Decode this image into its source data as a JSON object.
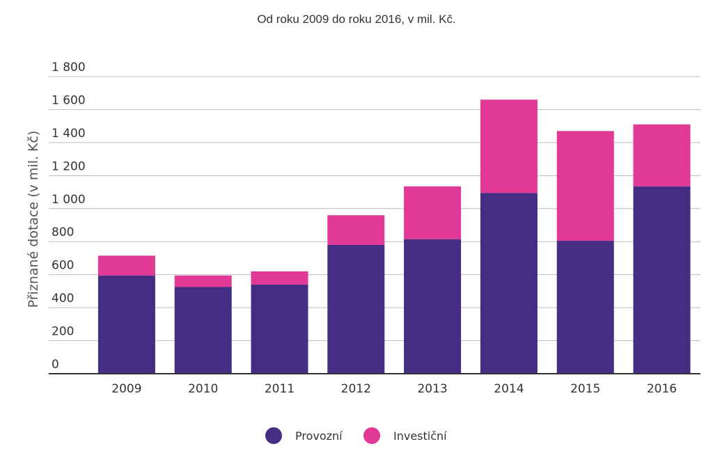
{
  "chart_data": {
    "type": "bar",
    "stacked": true,
    "title": "Od roku 2009 do roku 2016, v mil. Kč.",
    "xlabel": "",
    "ylabel": "Přiznané dotace (v mil. Kč)",
    "categories": [
      "2009",
      "2010",
      "2011",
      "2012",
      "2013",
      "2014",
      "2015",
      "2016"
    ],
    "series": [
      {
        "name": "Provozní",
        "color": "#452d83",
        "values": [
          595,
          525,
          540,
          780,
          815,
          1095,
          805,
          1135
        ]
      },
      {
        "name": "Investiční",
        "color": "#e03a96",
        "values": [
          120,
          70,
          80,
          180,
          320,
          565,
          665,
          375
        ]
      }
    ],
    "ylim": [
      0,
      1800
    ],
    "yticks": [
      0,
      200,
      400,
      600,
      800,
      1000,
      1200,
      1400,
      1600,
      1800
    ],
    "ytick_labels": [
      "0",
      "200",
      "400",
      "600",
      "800",
      "1 000",
      "1 200",
      "1 400",
      "1 600",
      "1 800"
    ],
    "grid": true,
    "legend_position": "bottom-center"
  }
}
